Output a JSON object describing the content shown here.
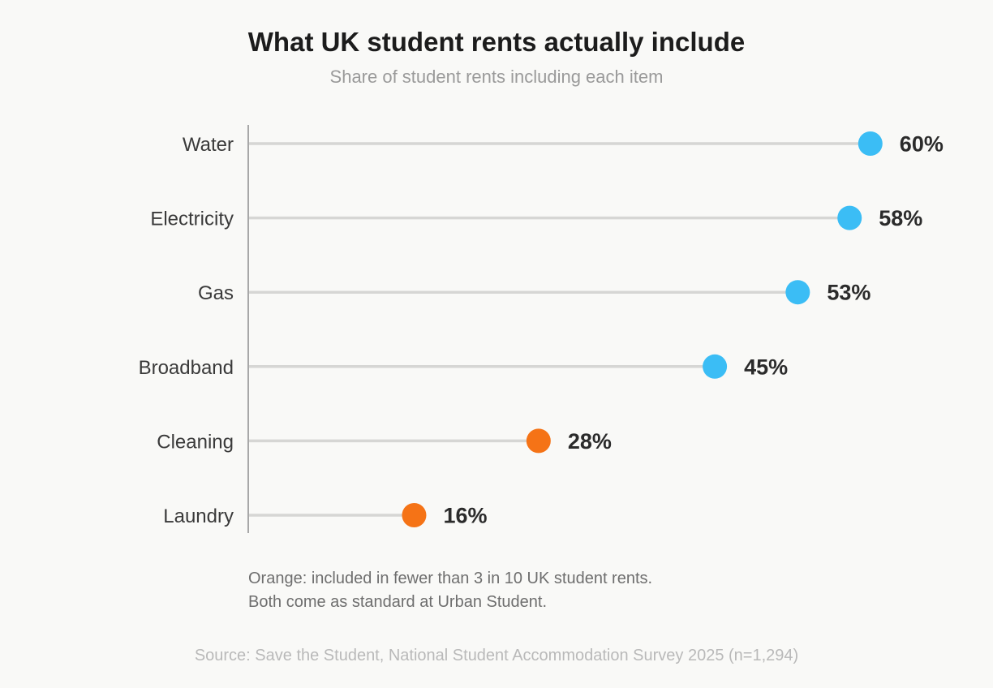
{
  "chart_data": {
    "type": "lollipop",
    "title": "What UK student rents actually include",
    "subtitle": "Share of student rents including each item",
    "categories": [
      "Water",
      "Electricity",
      "Gas",
      "Broadband",
      "Cleaning",
      "Laundry"
    ],
    "values": [
      60,
      58,
      53,
      45,
      28,
      16
    ],
    "value_labels": [
      "60%",
      "58%",
      "53%",
      "45%",
      "28%",
      "16%"
    ],
    "unit": "%",
    "highlight": [
      false,
      false,
      false,
      false,
      true,
      true
    ],
    "colors": {
      "default": "#3bbdf5",
      "highlight": "#f57316",
      "stem": "#d6d6d4",
      "axis": "#a8a8a8"
    },
    "grid": false,
    "annotation": [
      "Orange: included in fewer than 3 in 10 UK student rents.",
      "Both come as standard at Urban Student."
    ],
    "source": "Source: Save the Student, National Student Accommodation Survey 2025 (n=1,294)"
  }
}
